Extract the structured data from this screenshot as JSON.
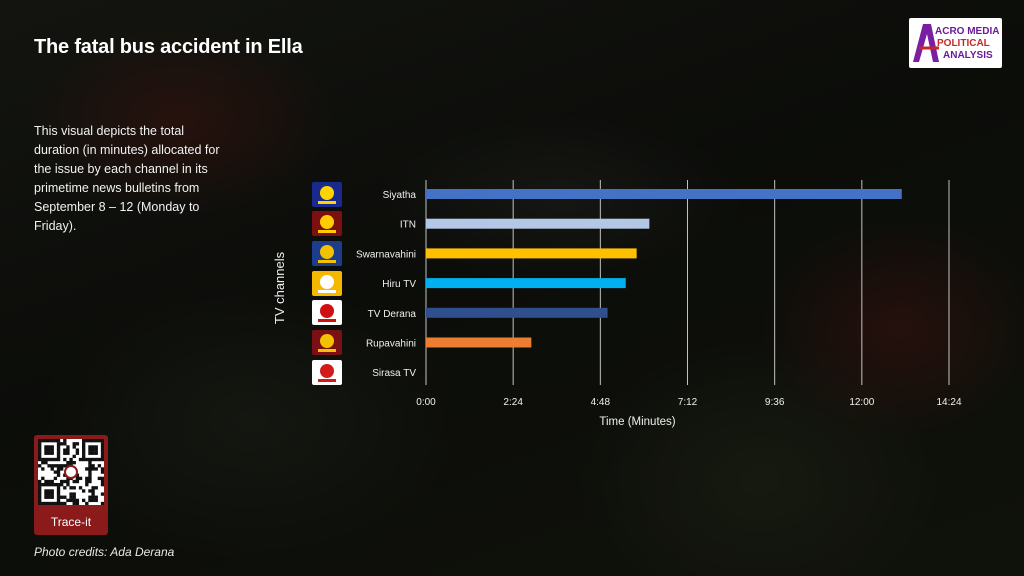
{
  "header": {
    "title": "The fatal bus accident in Ella",
    "description": "This visual depicts the total duration  (in minutes) allocated for the issue by each channel in its primetime news bulletins from September 8 – 12 (Monday to Friday)."
  },
  "branding": {
    "logo_line1": "ACRO MEDIA",
    "logo_line2": "POLITICAL",
    "logo_line3": "ANALYSIS",
    "qr_label": "Trace-it",
    "photo_credits": "Photo credits: Ada Derana"
  },
  "colors": {
    "Siyatha": "#4472c4",
    "ITN": "#b4c7e7",
    "Swarnavahini": "#ffc000",
    "Hiru TV": "#00b0f0",
    "TV Derana": "#2f4f8f",
    "Rupavahini": "#ed7d31",
    "Sirasa TV": "#a5a5a5"
  },
  "channel_icons": [
    {
      "name": "Siyatha",
      "icon": "siyatha-logo-icon",
      "bg": "#1a2a8c",
      "fg": "#ffd400"
    },
    {
      "name": "ITN",
      "icon": "itn-logo-icon",
      "bg": "#7a1010",
      "fg": "#ffcc00"
    },
    {
      "name": "Swarnavahini",
      "icon": "swarnavahini-logo-icon",
      "bg": "#1e3c8c",
      "fg": "#f2c200"
    },
    {
      "name": "Hiru TV",
      "icon": "hiru-tv-logo-icon",
      "bg": "#f5b800",
      "fg": "#ffffff"
    },
    {
      "name": "TV Derana",
      "icon": "tv-derana-logo-icon",
      "bg": "#ffffff",
      "fg": "#d01010"
    },
    {
      "name": "Rupavahini",
      "icon": "rupavahini-logo-icon",
      "bg": "#7a0f14",
      "fg": "#f2c200"
    },
    {
      "name": "Sirasa TV",
      "icon": "sirasa-tv-logo-icon",
      "bg": "#ffffff",
      "fg": "#d41a1a"
    }
  ],
  "chart_data": {
    "type": "bar",
    "orientation": "horizontal",
    "title": "",
    "xlabel": "Time (Minutes)",
    "ylabel": "TV channels",
    "categories": [
      "Siyatha",
      "ITN",
      "Swarnavahini",
      "Hiru TV",
      "TV Derana",
      "Rupavahini",
      "Sirasa TV"
    ],
    "values": [
      13.1,
      6.15,
      5.8,
      5.5,
      5.0,
      2.9,
      0
    ],
    "value_unit": "minutes",
    "xlim": [
      0,
      14.4
    ],
    "x_tick_labels": [
      "0:00",
      "2:24",
      "4:48",
      "7:12",
      "9:36",
      "12:00",
      "14:24"
    ],
    "x_ticks": [
      0,
      2.4,
      4.8,
      7.2,
      9.6,
      12.0,
      14.4
    ],
    "grid": "vertical",
    "legend": "none"
  }
}
